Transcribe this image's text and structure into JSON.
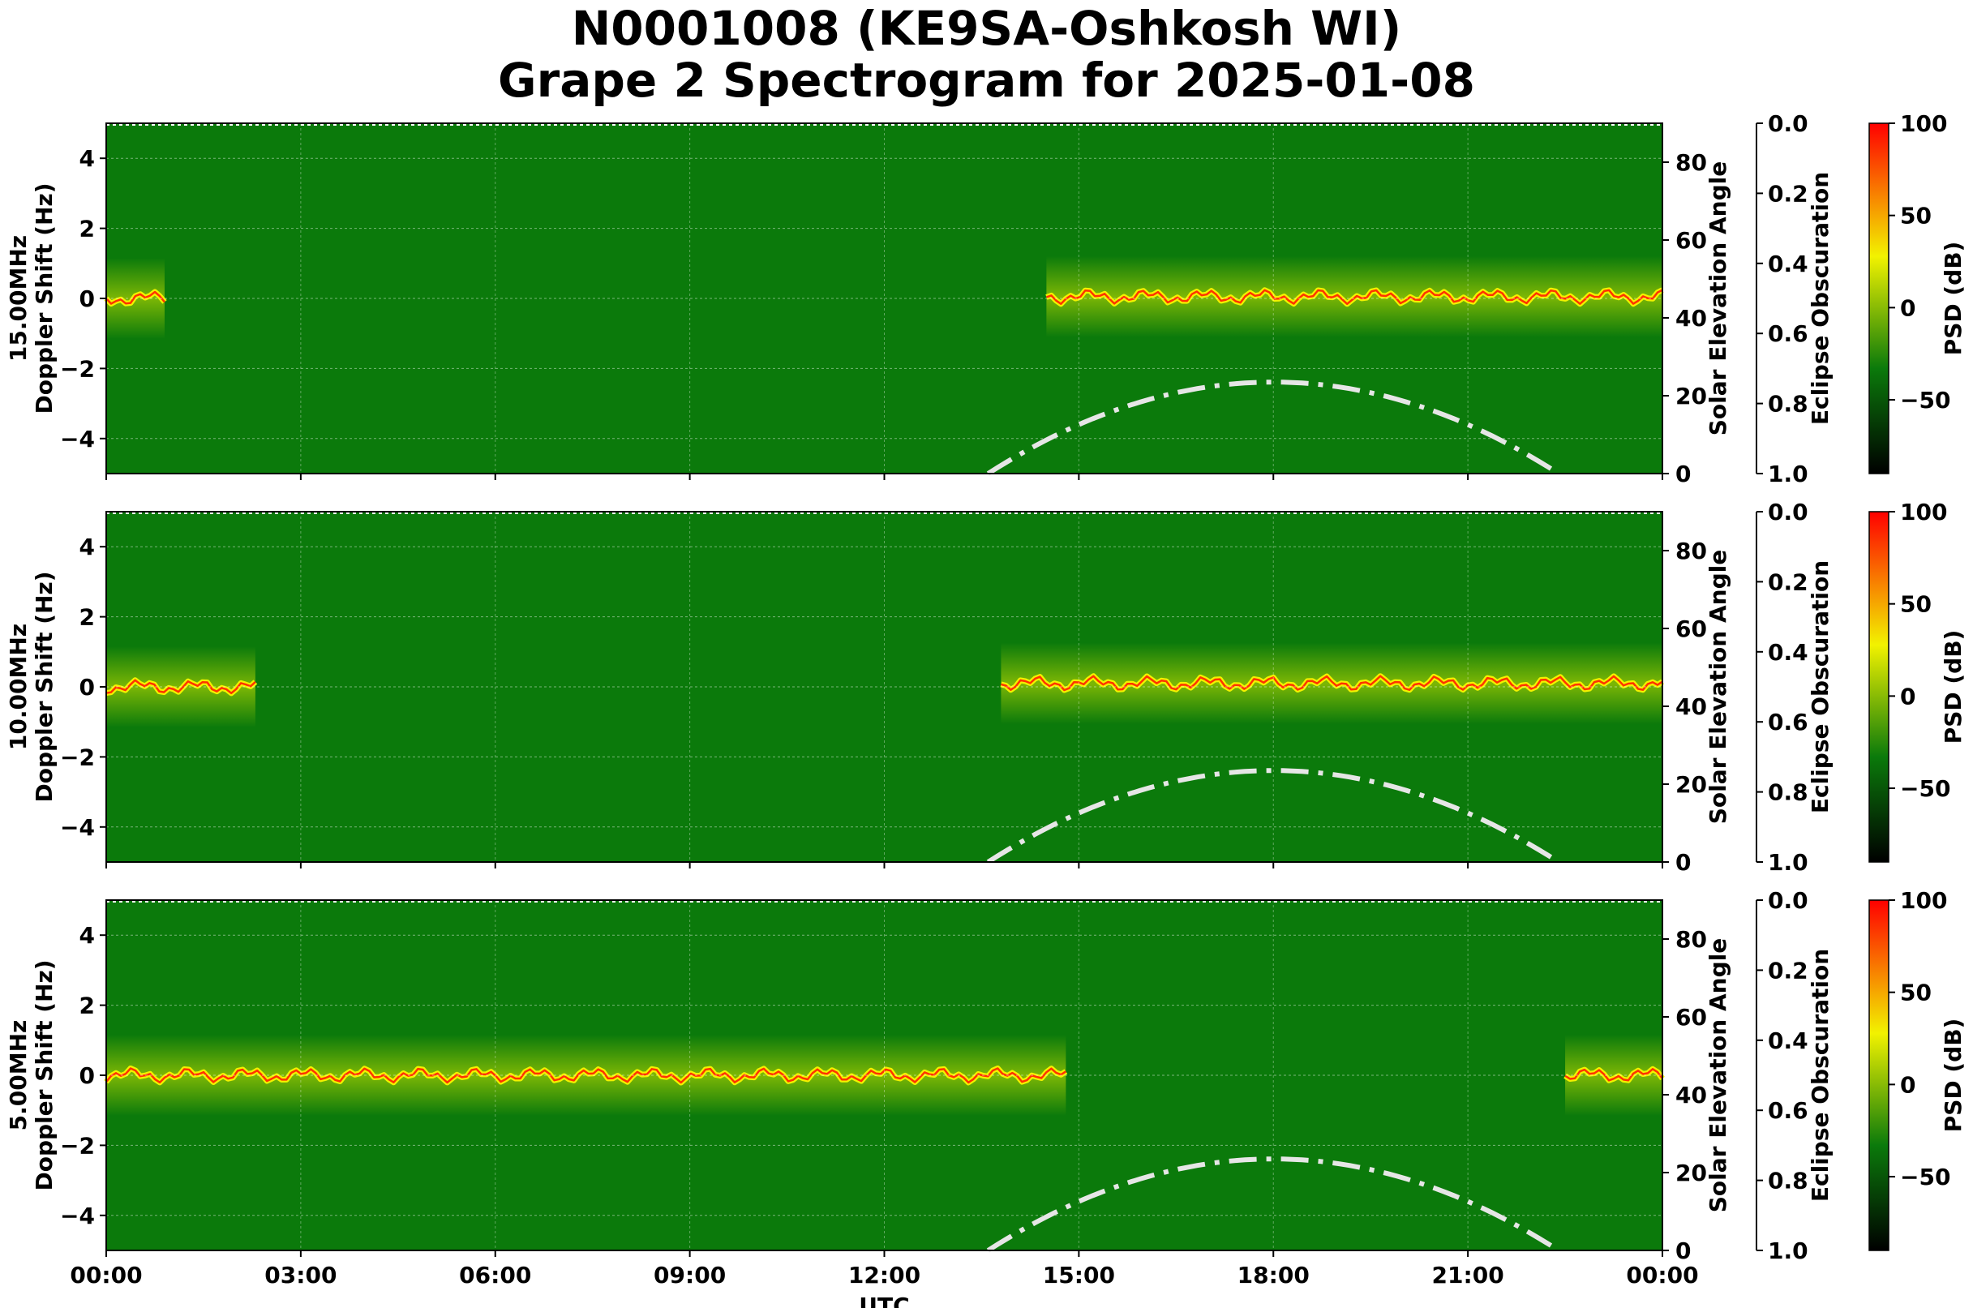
{
  "figure": {
    "title_line1": "N0001008 (KE9SA-Oshkosh WI)",
    "title_line2": "Grape 2 Spectrogram for 2025-01-08"
  },
  "chart_data": [
    {
      "type": "heatmap",
      "panel": "15.00MHz",
      "ylabel_line1": "15.00MHz",
      "ylabel_line2": "Doppler Shift (Hz)",
      "xlabel": "",
      "x_ticks": [
        "00:00",
        "03:00",
        "06:00",
        "09:00",
        "12:00",
        "15:00",
        "18:00",
        "21:00",
        "00:00"
      ],
      "x_range_hours": [
        0,
        24
      ],
      "ylim": [
        -5,
        5
      ],
      "y_ticks": [
        4,
        2,
        0,
        -2,
        -4
      ],
      "y_right_label": "Solar Elevation Angle",
      "y_right_lim": [
        0,
        90
      ],
      "y_right_ticks": [
        0,
        20,
        40,
        60,
        80
      ],
      "eclipse_axis_label": "Eclipse Obscuration",
      "eclipse_axis_ticks": [
        "0.0",
        "0.2",
        "0.4",
        "0.6",
        "0.8",
        "1.0"
      ],
      "colorbar_label": "PSD (dB)",
      "colorbar_ticks": [
        100,
        50,
        0,
        -50
      ],
      "grid": true,
      "trace_segments": [
        [
          0,
          0.9,
          0.0
        ],
        [
          14.5,
          24,
          0.05
        ]
      ],
      "solar_elevation": [
        [
          13.6,
          0
        ],
        [
          15,
          11.5
        ],
        [
          16.5,
          19.5
        ],
        [
          18,
          23.5
        ],
        [
          19.5,
          21.5
        ],
        [
          21,
          14
        ],
        [
          22.4,
          0
        ]
      ]
    },
    {
      "type": "heatmap",
      "panel": "10.00MHz",
      "ylabel_line1": "10.00MHz",
      "ylabel_line2": "Doppler Shift (Hz)",
      "xlabel": "",
      "x_ticks": [
        "00:00",
        "03:00",
        "06:00",
        "09:00",
        "12:00",
        "15:00",
        "18:00",
        "21:00",
        "00:00"
      ],
      "x_range_hours": [
        0,
        24
      ],
      "ylim": [
        -5,
        5
      ],
      "y_ticks": [
        4,
        2,
        0,
        -2,
        -4
      ],
      "y_right_label": "Solar Elevation Angle",
      "y_right_lim": [
        0,
        90
      ],
      "y_right_ticks": [
        0,
        20,
        40,
        60,
        80
      ],
      "eclipse_axis_label": "Eclipse Obscuration",
      "eclipse_axis_ticks": [
        "0.0",
        "0.2",
        "0.4",
        "0.6",
        "0.8",
        "1.0"
      ],
      "colorbar_label": "PSD (dB)",
      "colorbar_ticks": [
        100,
        50,
        0,
        -50
      ],
      "grid": true,
      "trace_segments": [
        [
          0,
          2.3,
          0.0
        ],
        [
          13.8,
          24,
          0.1
        ]
      ],
      "solar_elevation": [
        [
          13.6,
          0
        ],
        [
          15,
          11.5
        ],
        [
          16.5,
          19.5
        ],
        [
          18,
          23.5
        ],
        [
          19.5,
          21.5
        ],
        [
          21,
          14
        ],
        [
          22.4,
          0
        ]
      ]
    },
    {
      "type": "heatmap",
      "panel": "5.00MHz",
      "ylabel_line1": "5.00MHz",
      "ylabel_line2": "Doppler Shift (Hz)",
      "xlabel": "UTC",
      "x_ticks": [
        "00:00",
        "03:00",
        "06:00",
        "09:00",
        "12:00",
        "15:00",
        "18:00",
        "21:00",
        "00:00"
      ],
      "x_range_hours": [
        0,
        24
      ],
      "ylim": [
        -5,
        5
      ],
      "y_ticks": [
        4,
        2,
        0,
        -2,
        -4
      ],
      "y_right_label": "Solar Elevation Angle",
      "y_right_lim": [
        0,
        90
      ],
      "y_right_ticks": [
        0,
        20,
        40,
        60,
        80
      ],
      "eclipse_axis_label": "Eclipse Obscuration",
      "eclipse_axis_ticks": [
        "0.0",
        "0.2",
        "0.4",
        "0.6",
        "0.8",
        "1.0"
      ],
      "colorbar_label": "PSD (dB)",
      "colorbar_ticks": [
        100,
        50,
        0,
        -50
      ],
      "grid": true,
      "trace_segments": [
        [
          0,
          14.8,
          0.0
        ],
        [
          22.5,
          24,
          0.0
        ]
      ],
      "solar_elevation": [
        [
          13.6,
          0
        ],
        [
          15,
          11.5
        ],
        [
          16.5,
          19.5
        ],
        [
          18,
          23.5
        ],
        [
          19.5,
          21.5
        ],
        [
          21,
          14
        ],
        [
          22.4,
          0
        ]
      ]
    }
  ],
  "colors": {
    "background_green": "#0b7a0b",
    "trace_yellow": "#f2f200",
    "trace_red": "#ff3300",
    "solar_line": "#e6e6e6",
    "colorbar_stops": [
      "#000000",
      "#0b7a0b",
      "#f2f200",
      "#ff0000"
    ]
  }
}
